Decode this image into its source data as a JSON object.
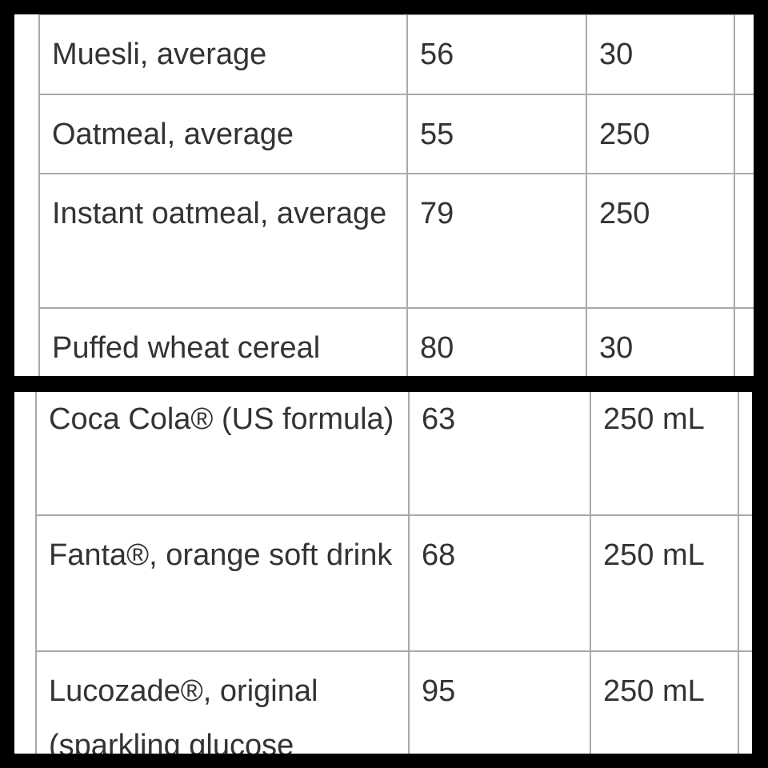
{
  "top_table": {
    "rows": [
      [
        "Muesli, average",
        "56",
        "30"
      ],
      [
        "Oatmeal, average",
        "55",
        "250"
      ],
      [
        "Instant oatmeal, average",
        "79",
        "250"
      ],
      [
        "Puffed wheat cereal",
        "80",
        "30"
      ]
    ]
  },
  "bottom_table": {
    "rows": [
      [
        "Coca Cola® (US formula)",
        "63",
        "250 mL"
      ],
      [
        "Fanta®, orange soft drink",
        "68",
        "250 mL"
      ],
      [
        "Lucozade®, original (sparkling glucose",
        "95",
        "250 mL"
      ]
    ]
  }
}
